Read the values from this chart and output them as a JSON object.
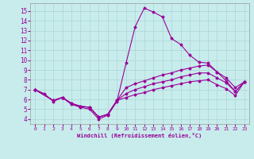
{
  "xlabel": "Windchill (Refroidissement éolien,°C)",
  "xlim": [
    -0.5,
    23.5
  ],
  "ylim": [
    3.5,
    15.8
  ],
  "xticks": [
    0,
    1,
    2,
    3,
    4,
    5,
    6,
    7,
    8,
    9,
    10,
    11,
    12,
    13,
    14,
    15,
    16,
    17,
    18,
    19,
    20,
    21,
    22,
    23
  ],
  "yticks": [
    4,
    5,
    6,
    7,
    8,
    9,
    10,
    11,
    12,
    13,
    14,
    15
  ],
  "bg_color": "#c8ecec",
  "grid_color": "#b0d8d8",
  "line_color": "#990099",
  "series": [
    {
      "x": [
        0,
        1,
        2,
        3,
        4,
        5,
        6,
        7,
        8,
        9,
        10,
        11,
        12,
        13,
        14,
        15,
        16,
        17,
        18,
        19,
        20,
        21,
        22,
        23
      ],
      "y": [
        7.0,
        6.6,
        5.8,
        6.2,
        5.5,
        5.2,
        5.0,
        4.0,
        4.4,
        5.8,
        9.7,
        13.4,
        15.3,
        14.9,
        14.4,
        12.2,
        11.6,
        10.5,
        9.8,
        9.7,
        8.8,
        7.9,
        6.8,
        7.8
      ]
    },
    {
      "x": [
        0,
        2,
        3,
        4,
        5,
        6,
        7,
        8,
        9,
        10,
        11,
        12,
        13,
        14,
        15,
        16,
        17,
        18,
        19,
        20,
        21,
        22,
        23
      ],
      "y": [
        7.0,
        5.9,
        6.2,
        5.6,
        5.3,
        5.2,
        4.2,
        4.5,
        5.9,
        7.2,
        7.6,
        7.9,
        8.2,
        8.5,
        8.7,
        9.0,
        9.2,
        9.4,
        9.5,
        8.8,
        8.2,
        7.2,
        7.8
      ]
    },
    {
      "x": [
        0,
        2,
        3,
        4,
        5,
        6,
        7,
        8,
        9,
        10,
        11,
        12,
        13,
        14,
        15,
        16,
        17,
        18,
        19,
        20,
        21,
        22,
        23
      ],
      "y": [
        7.0,
        5.9,
        6.2,
        5.6,
        5.3,
        5.2,
        4.2,
        4.5,
        5.9,
        6.6,
        7.0,
        7.3,
        7.6,
        7.8,
        8.0,
        8.3,
        8.5,
        8.7,
        8.7,
        8.2,
        7.7,
        6.8,
        7.8
      ]
    },
    {
      "x": [
        0,
        2,
        3,
        4,
        5,
        6,
        7,
        8,
        9,
        10,
        11,
        12,
        13,
        14,
        15,
        16,
        17,
        18,
        19,
        20,
        21,
        22,
        23
      ],
      "y": [
        7.0,
        5.9,
        6.2,
        5.6,
        5.3,
        5.2,
        4.2,
        4.5,
        5.9,
        6.2,
        6.5,
        6.7,
        7.0,
        7.2,
        7.4,
        7.6,
        7.8,
        7.9,
        8.0,
        7.5,
        7.1,
        6.4,
        7.8
      ]
    }
  ]
}
